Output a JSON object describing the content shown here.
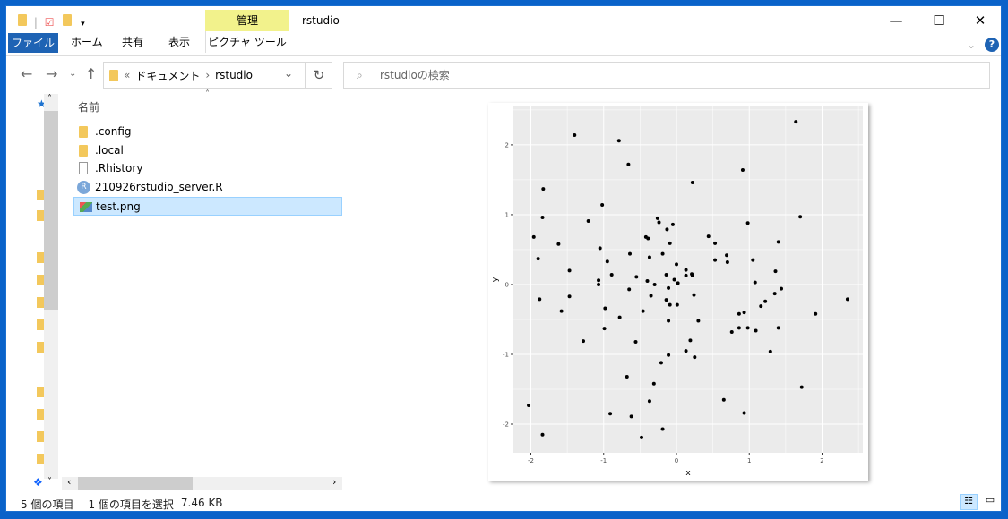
{
  "window": {
    "title": "rstudio",
    "context_tab": "管理"
  },
  "ribbon": {
    "tabs": [
      "ファイル",
      "ホーム",
      "共有",
      "表示",
      "ピクチャ ツール"
    ]
  },
  "address": {
    "prefix": "«",
    "path": [
      "ドキュメント",
      "rstudio"
    ]
  },
  "search": {
    "placeholder": "rstudioの検索"
  },
  "file_list": {
    "header": "名前",
    "items": [
      {
        "name": ".config",
        "type": "folder"
      },
      {
        "name": ".local",
        "type": "folder"
      },
      {
        "name": ".Rhistory",
        "type": "file"
      },
      {
        "name": "210926rstudio_server.R",
        "type": "r-script"
      },
      {
        "name": "test.png",
        "type": "image",
        "selected": true
      }
    ]
  },
  "status": {
    "count": "5 個の項目",
    "selection": "1 個の項目を選択",
    "size": "7.46 KB"
  },
  "colors": {
    "accent": "#1e63b4",
    "selection": "#cce8ff",
    "manage_tab": "#f2f28c",
    "panel": "#ebebeb"
  },
  "chart_data": {
    "type": "scatter",
    "xlabel": "x",
    "ylabel": "y",
    "xlim": [
      -2.24,
      2.56
    ],
    "ylim": [
      -2.41,
      2.55
    ],
    "xticks": [
      "-2",
      "-1",
      "0",
      "1",
      "2"
    ],
    "yticks": [
      "-2",
      "-1",
      "0",
      "1",
      "2"
    ],
    "grid": true,
    "points": [
      [
        1.64,
        2.33
      ],
      [
        -1.4,
        2.14
      ],
      [
        -0.79,
        2.06
      ],
      [
        -0.66,
        1.72
      ],
      [
        0.91,
        1.64
      ],
      [
        0.22,
        1.46
      ],
      [
        -1.83,
        1.37
      ],
      [
        -1.02,
        1.14
      ],
      [
        -1.84,
        0.96
      ],
      [
        1.7,
        0.97
      ],
      [
        -1.21,
        0.91
      ],
      [
        -0.26,
        0.95
      ],
      [
        -0.24,
        0.89
      ],
      [
        0.98,
        0.88
      ],
      [
        -0.05,
        0.86
      ],
      [
        -0.13,
        0.79
      ],
      [
        -1.96,
        0.68
      ],
      [
        -0.42,
        0.68
      ],
      [
        -0.39,
        0.66
      ],
      [
        0.44,
        0.69
      ],
      [
        -1.62,
        0.58
      ],
      [
        -0.09,
        0.59
      ],
      [
        0.53,
        0.59
      ],
      [
        1.4,
        0.61
      ],
      [
        -1.05,
        0.52
      ],
      [
        -0.64,
        0.44
      ],
      [
        -0.19,
        0.44
      ],
      [
        -1.9,
        0.37
      ],
      [
        -0.37,
        0.39
      ],
      [
        0.69,
        0.42
      ],
      [
        -0.95,
        0.33
      ],
      [
        0.53,
        0.35
      ],
      [
        0.7,
        0.32
      ],
      [
        1.05,
        0.35
      ],
      [
        0.0,
        0.29
      ],
      [
        -1.47,
        0.2
      ],
      [
        0.13,
        0.21
      ],
      [
        1.36,
        0.19
      ],
      [
        -0.89,
        0.14
      ],
      [
        -0.14,
        0.14
      ],
      [
        -0.55,
        0.11
      ],
      [
        0.13,
        0.13
      ],
      [
        0.21,
        0.15
      ],
      [
        0.22,
        0.13
      ],
      [
        -1.07,
        0.06
      ],
      [
        -0.03,
        0.07
      ],
      [
        -0.4,
        0.05
      ],
      [
        1.08,
        0.03
      ],
      [
        0.02,
        0.02
      ],
      [
        -1.07,
        0.0
      ],
      [
        -0.3,
        0.0
      ],
      [
        -0.65,
        -0.07
      ],
      [
        -0.11,
        -0.05
      ],
      [
        1.44,
        -0.06
      ],
      [
        -1.47,
        -0.17
      ],
      [
        -0.35,
        -0.16
      ],
      [
        0.24,
        -0.15
      ],
      [
        1.35,
        -0.13
      ],
      [
        -1.88,
        -0.21
      ],
      [
        -0.14,
        -0.22
      ],
      [
        1.22,
        -0.24
      ],
      [
        2.35,
        -0.21
      ],
      [
        -0.09,
        -0.29
      ],
      [
        0.01,
        -0.29
      ],
      [
        1.16,
        -0.31
      ],
      [
        -0.98,
        -0.34
      ],
      [
        -1.58,
        -0.38
      ],
      [
        -0.46,
        -0.38
      ],
      [
        0.93,
        -0.4
      ],
      [
        0.86,
        -0.42
      ],
      [
        1.91,
        -0.42
      ],
      [
        -0.78,
        -0.47
      ],
      [
        -0.11,
        -0.52
      ],
      [
        0.3,
        -0.52
      ],
      [
        -0.99,
        -0.63
      ],
      [
        0.86,
        -0.62
      ],
      [
        0.98,
        -0.62
      ],
      [
        1.4,
        -0.62
      ],
      [
        1.09,
        -0.66
      ],
      [
        0.76,
        -0.68
      ],
      [
        -1.28,
        -0.81
      ],
      [
        0.19,
        -0.8
      ],
      [
        -0.56,
        -0.82
      ],
      [
        0.13,
        -0.95
      ],
      [
        1.29,
        -0.96
      ],
      [
        -0.11,
        -1.01
      ],
      [
        0.25,
        -1.04
      ],
      [
        -0.21,
        -1.12
      ],
      [
        -0.68,
        -1.32
      ],
      [
        -0.31,
        -1.42
      ],
      [
        1.72,
        -1.47
      ],
      [
        0.65,
        -1.65
      ],
      [
        -0.37,
        -1.67
      ],
      [
        -2.03,
        -1.73
      ],
      [
        0.93,
        -1.84
      ],
      [
        -0.91,
        -1.85
      ],
      [
        -0.62,
        -1.89
      ],
      [
        -1.84,
        -2.15
      ],
      [
        -0.19,
        -2.07
      ],
      [
        -0.48,
        -2.19
      ]
    ]
  }
}
